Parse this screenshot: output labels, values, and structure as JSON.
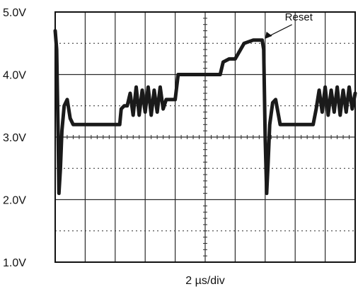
{
  "chart_data": {
    "type": "line",
    "title": "",
    "xlabel": "2 µs/div",
    "ylabel": "",
    "x_unit": "µs",
    "y_unit": "V",
    "xlim": [
      0,
      20
    ],
    "ylim": [
      1.0,
      5.0
    ],
    "yticks": [
      {
        "value": 5.0,
        "label": "5.0V"
      },
      {
        "value": 4.0,
        "label": "4.0V"
      },
      {
        "value": 3.0,
        "label": "3.0V"
      },
      {
        "value": 2.0,
        "label": "2.0V"
      },
      {
        "value": 1.0,
        "label": "1.0V"
      }
    ],
    "grid": true,
    "legend": "none",
    "colors": {
      "trace": "#1a1a1a",
      "grid": "#2a2a2a",
      "frame": "#111111"
    },
    "annotations": [
      {
        "text": "Reset",
        "x": 13.9,
        "y": 4.55
      }
    ],
    "series": [
      {
        "name": "",
        "x": [
          0.0,
          0.1,
          0.2,
          0.25,
          0.35,
          0.45,
          0.6,
          0.8,
          1.0,
          1.2,
          1.5,
          2.0,
          3.0,
          4.0,
          4.3,
          4.4,
          4.6,
          4.8,
          5.0,
          5.2,
          5.4,
          5.6,
          5.8,
          6.0,
          6.2,
          6.4,
          6.6,
          6.8,
          7.0,
          7.2,
          7.4,
          8.0,
          8.2,
          8.6,
          9.0,
          10.0,
          11.0,
          11.2,
          11.6,
          12.0,
          12.6,
          13.2,
          13.5,
          13.8,
          13.9,
          14.0,
          14.1,
          14.2,
          14.3,
          14.5,
          14.7,
          15.0,
          15.5,
          16.5,
          17.2,
          17.4,
          17.6,
          17.8,
          18.0,
          18.2,
          18.4,
          18.6,
          18.8,
          19.0,
          19.2,
          19.4,
          19.6,
          19.8,
          20.0
        ],
        "y": [
          4.7,
          4.4,
          3.0,
          2.1,
          2.5,
          3.1,
          3.5,
          3.6,
          3.3,
          3.2,
          3.2,
          3.2,
          3.2,
          3.2,
          3.2,
          3.45,
          3.5,
          3.5,
          3.7,
          3.35,
          3.8,
          3.35,
          3.75,
          3.4,
          3.8,
          3.35,
          3.75,
          3.4,
          3.8,
          3.45,
          3.6,
          3.6,
          4.0,
          4.0,
          4.0,
          4.0,
          4.0,
          4.2,
          4.25,
          4.25,
          4.5,
          4.55,
          4.55,
          4.55,
          4.4,
          3.0,
          2.1,
          2.6,
          3.2,
          3.55,
          3.6,
          3.2,
          3.2,
          3.2,
          3.2,
          3.45,
          3.75,
          3.4,
          3.8,
          3.35,
          3.75,
          3.4,
          3.8,
          3.35,
          3.75,
          3.4,
          3.8,
          3.45,
          3.7
        ]
      }
    ]
  }
}
